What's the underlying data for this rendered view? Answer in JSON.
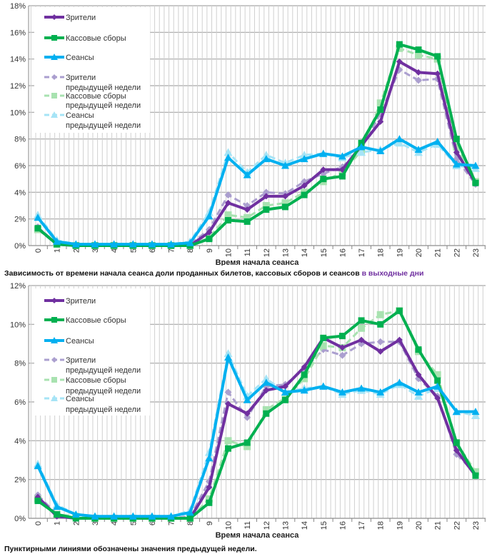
{
  "chart_data": [
    {
      "type": "line",
      "title": "",
      "xlabel": "Время начала сеанса",
      "ylabel": "",
      "ylim": [
        0,
        18
      ],
      "yticks": [
        "0%",
        "2%",
        "4%",
        "6%",
        "8%",
        "10%",
        "12%",
        "14%",
        "16%",
        "18%"
      ],
      "grid": true,
      "legend_position": "top-left",
      "categories": [
        "0",
        "1",
        "2",
        "3",
        "4",
        "5",
        "6",
        "7",
        "8",
        "9",
        "10",
        "11",
        "12",
        "13",
        "14",
        "15",
        "16",
        "17",
        "18",
        "19",
        "20",
        "21",
        "22",
        "23"
      ],
      "series": [
        {
          "name": "Зрители",
          "color": "#7030a0",
          "style": "solid",
          "marker": "diamond",
          "values": [
            1.3,
            0.1,
            0,
            0,
            0,
            0,
            0,
            0,
            0,
            1.0,
            3.2,
            2.7,
            3.7,
            3.7,
            4.5,
            5.7,
            5.7,
            7.5,
            9.3,
            13.8,
            13.0,
            12.9,
            7.0,
            4.7
          ]
        },
        {
          "name": "Кассовые сборы",
          "color": "#00b050",
          "style": "solid",
          "marker": "square",
          "values": [
            1.3,
            0.1,
            0,
            0,
            0,
            0,
            0,
            0,
            0,
            0.5,
            1.9,
            1.8,
            2.7,
            2.9,
            3.8,
            5.0,
            5.2,
            7.7,
            10.2,
            15.1,
            14.7,
            14.2,
            8.0,
            4.7
          ]
        },
        {
          "name": "Сеансы",
          "color": "#00b0f0",
          "style": "solid",
          "marker": "triangle",
          "values": [
            2.1,
            0.3,
            0.1,
            0.1,
            0.1,
            0.1,
            0.1,
            0.1,
            0.2,
            2.2,
            6.6,
            5.3,
            6.5,
            6.0,
            6.5,
            6.9,
            6.7,
            7.4,
            7.1,
            8.0,
            7.2,
            7.8,
            6.1,
            6.0
          ]
        },
        {
          "name": "Зрители предыдущей недели",
          "color": "#ab9fcf",
          "style": "dashed",
          "marker": "diamond",
          "values": [
            1.4,
            0.1,
            0,
            0,
            0,
            0,
            0,
            0,
            0.1,
            1.2,
            3.8,
            3.0,
            4.0,
            3.9,
            4.8,
            5.4,
            5.9,
            7.3,
            9.9,
            13.2,
            12.4,
            12.5,
            6.5,
            4.6
          ]
        },
        {
          "name": "Кассовые сборы предыдущей недели",
          "color": "#a8e2b0",
          "style": "dashed",
          "marker": "square",
          "values": [
            1.2,
            0.1,
            0,
            0,
            0,
            0,
            0,
            0,
            0,
            0.6,
            2.3,
            2.1,
            3.0,
            3.2,
            4.0,
            4.8,
            5.5,
            7.1,
            10.7,
            14.8,
            14.3,
            14.0,
            7.4,
            4.8
          ]
        },
        {
          "name": "Сеансы предыдущей недели",
          "color": "#a6e4f6",
          "style": "dashed",
          "marker": "triangle",
          "values": [
            2.3,
            0.4,
            0.1,
            0.1,
            0.1,
            0.1,
            0.1,
            0.1,
            0.3,
            2.5,
            7.0,
            5.5,
            6.8,
            6.2,
            6.8,
            6.9,
            6.6,
            7.0,
            7.2,
            7.7,
            7.0,
            7.6,
            6.0,
            5.8
          ]
        }
      ]
    },
    {
      "type": "line",
      "title": "",
      "xlabel": "Время начала сеанса",
      "ylabel": "",
      "ylim": [
        0,
        12
      ],
      "yticks": [
        "0%",
        "2%",
        "4%",
        "6%",
        "8%",
        "10%",
        "12%"
      ],
      "grid": true,
      "legend_position": "top-left",
      "categories": [
        "0",
        "1",
        "2",
        "3",
        "4",
        "5",
        "6",
        "7",
        "8",
        "9",
        "10",
        "11",
        "12",
        "13",
        "14",
        "15",
        "16",
        "17",
        "18",
        "19",
        "20",
        "21",
        "22",
        "23"
      ],
      "series": [
        {
          "name": "Зрители",
          "color": "#7030a0",
          "style": "solid",
          "marker": "diamond",
          "values": [
            1.1,
            0.1,
            0,
            0,
            0,
            0,
            0,
            0,
            0,
            1.6,
            5.9,
            5.4,
            6.6,
            6.8,
            7.8,
            9.3,
            8.8,
            9.2,
            8.6,
            9.2,
            7.4,
            6.2,
            3.5,
            2.2
          ]
        },
        {
          "name": "Кассовые сборы",
          "color": "#00b050",
          "style": "solid",
          "marker": "square",
          "values": [
            0.9,
            0.2,
            0,
            0,
            0,
            0,
            0,
            0,
            0,
            0.8,
            3.6,
            3.9,
            5.4,
            6.1,
            7.4,
            9.3,
            9.4,
            10.2,
            10.0,
            10.7,
            8.7,
            7.1,
            3.9,
            2.2
          ]
        },
        {
          "name": "Сеансы",
          "color": "#00b0f0",
          "style": "solid",
          "marker": "triangle",
          "values": [
            2.7,
            0.6,
            0.2,
            0.1,
            0.1,
            0.1,
            0.1,
            0.1,
            0.3,
            3.1,
            8.3,
            6.1,
            7.0,
            6.5,
            6.6,
            6.8,
            6.5,
            6.7,
            6.5,
            7.0,
            6.5,
            6.8,
            5.5,
            5.5
          ]
        },
        {
          "name": "Зрители предыдущей недели",
          "color": "#ab9fcf",
          "style": "dashed",
          "marker": "diamond",
          "values": [
            1.2,
            0.2,
            0,
            0,
            0,
            0,
            0,
            0,
            0.1,
            1.9,
            6.5,
            5.2,
            6.8,
            6.9,
            7.7,
            8.7,
            8.4,
            9.0,
            9.1,
            9.1,
            7.2,
            6.3,
            3.3,
            2.3
          ]
        },
        {
          "name": "Кассовые сборы предыдущей недели",
          "color": "#a8e2b0",
          "style": "dashed",
          "marker": "square",
          "values": [
            1.0,
            0.2,
            0.1,
            0,
            0,
            0,
            0,
            0,
            0,
            1.0,
            4.0,
            3.7,
            5.6,
            6.2,
            7.2,
            8.9,
            8.8,
            9.8,
            10.5,
            10.7,
            8.6,
            7.4,
            3.9,
            2.4
          ]
        },
        {
          "name": "Сеансы предыдущей недели",
          "color": "#a6e4f6",
          "style": "dashed",
          "marker": "triangle",
          "values": [
            2.8,
            0.7,
            0.2,
            0.1,
            0.1,
            0.1,
            0.1,
            0.1,
            0.4,
            3.4,
            8.5,
            6.3,
            7.2,
            6.5,
            6.7,
            6.8,
            6.4,
            6.6,
            6.4,
            6.9,
            6.3,
            6.7,
            5.5,
            5.3
          ]
        }
      ]
    }
  ],
  "legend_lines": [
    [
      "Зрители"
    ],
    [
      "Кассовые сборы"
    ],
    [
      "Сеансы"
    ],
    [
      "Зрители",
      "предыдущей недели"
    ],
    [
      "Кассовые сборы",
      "предыдущей недели"
    ],
    [
      "Сеансы",
      "предыдущей недели"
    ]
  ],
  "caption_top": "Зависимость от времени начала сеанса доли проданных билетов, кассовых сборов и сеансов ",
  "caption_top_highlight": "в выходные дни",
  "caption_bottom": "Пунктирными линиями обозначены значения предыдущей недели."
}
